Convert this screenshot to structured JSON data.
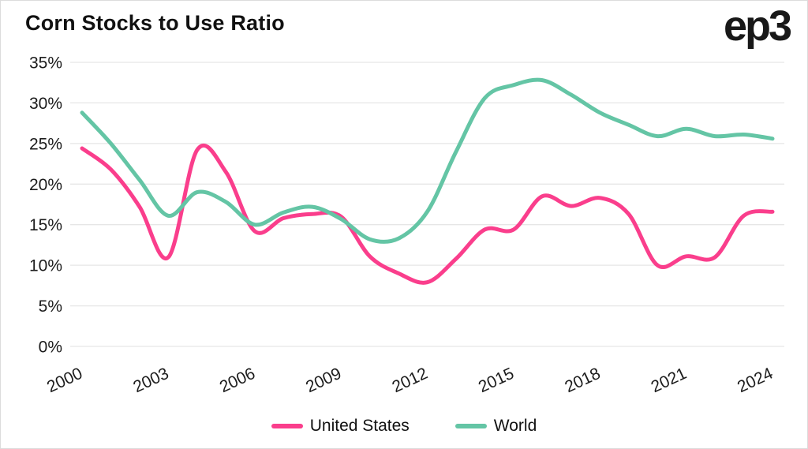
{
  "title": "Corn Stocks to Use Ratio",
  "logo": "ep3",
  "chart_data": {
    "type": "line",
    "title": "Corn Stocks to Use Ratio",
    "x": [
      2000,
      2001,
      2002,
      2003,
      2004,
      2005,
      2006,
      2007,
      2008,
      2009,
      2010,
      2011,
      2012,
      2013,
      2014,
      2015,
      2016,
      2017,
      2018,
      2019,
      2020,
      2021,
      2022,
      2023,
      2024
    ],
    "x_ticks": [
      {
        "v": 2000,
        "label": "2000"
      },
      {
        "v": 2003,
        "label": "2003"
      },
      {
        "v": 2006,
        "label": "2006"
      },
      {
        "v": 2009,
        "label": "2009"
      },
      {
        "v": 2012,
        "label": "2012"
      },
      {
        "v": 2015,
        "label": "2015"
      },
      {
        "v": 2018,
        "label": "2018"
      },
      {
        "v": 2021,
        "label": "2021"
      },
      {
        "v": 2024,
        "label": "2024"
      }
    ],
    "y_ticks": [
      {
        "v": 0,
        "label": "0%"
      },
      {
        "v": 5,
        "label": "5%"
      },
      {
        "v": 10,
        "label": "10%"
      },
      {
        "v": 15,
        "label": "15%"
      },
      {
        "v": 20,
        "label": "20%"
      },
      {
        "v": 25,
        "label": "25%"
      },
      {
        "v": 30,
        "label": "30%"
      },
      {
        "v": 35,
        "label": "35%"
      }
    ],
    "ylim": [
      0,
      35
    ],
    "grid": "horizontal",
    "legend_position": "bottom-center",
    "series": [
      {
        "name": "United States",
        "color": "#FA3E8C",
        "values": [
          24.4,
          21.8,
          17.2,
          11.0,
          24.2,
          21.5,
          14.2,
          15.8,
          16.3,
          16.0,
          11.1,
          9.0,
          7.9,
          10.8,
          14.4,
          14.4,
          18.5,
          17.3,
          18.3,
          16.3,
          10.0,
          11.1,
          11.0,
          16.1,
          16.6
        ]
      },
      {
        "name": "World",
        "color": "#64C5A5",
        "values": [
          28.8,
          25.0,
          20.5,
          16.1,
          19.0,
          17.8,
          15.0,
          16.5,
          17.2,
          15.7,
          13.2,
          13.3,
          16.6,
          24.0,
          30.6,
          32.2,
          32.8,
          31.0,
          28.8,
          27.3,
          25.9,
          26.8,
          25.9,
          26.1,
          25.6
        ]
      }
    ]
  },
  "colors": {
    "gridline": "#e6e6e6",
    "axis_text": "#1c1c1c",
    "title_text": "#111111"
  }
}
